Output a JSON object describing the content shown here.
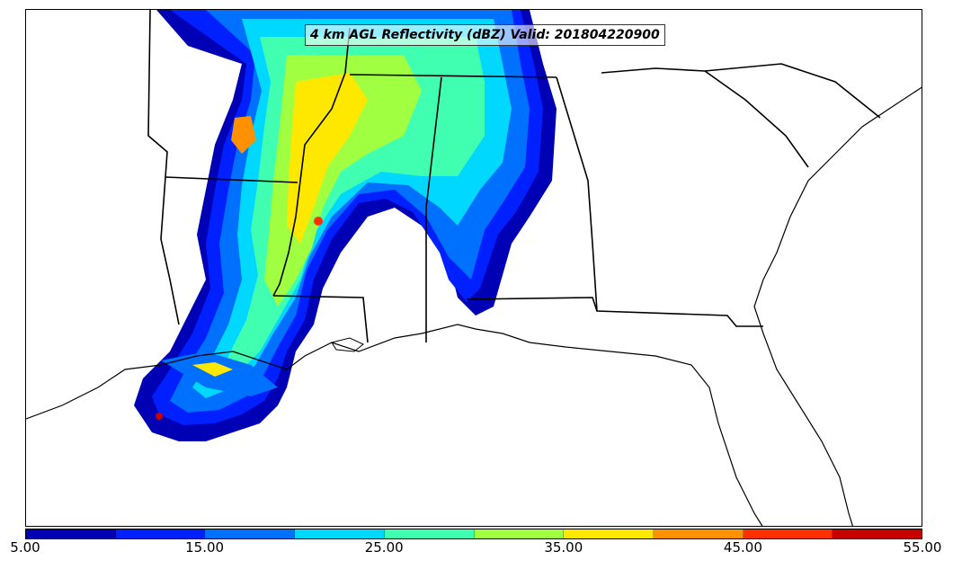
{
  "title": "4 km AGL Reflectivity (dBZ) Valid: 201804220900",
  "colorbar": {
    "colors": [
      "#0000b4",
      "#0020ff",
      "#0070ff",
      "#00d8ff",
      "#40ffb0",
      "#a0ff40",
      "#ffe800",
      "#ff9000",
      "#ff3000",
      "#c80000"
    ],
    "tick_labels": [
      "5.00",
      "15.00",
      "25.00",
      "35.00",
      "45.00",
      "55.00"
    ]
  },
  "map": {
    "land_color": "#ffffff",
    "border_color": "#000000"
  }
}
